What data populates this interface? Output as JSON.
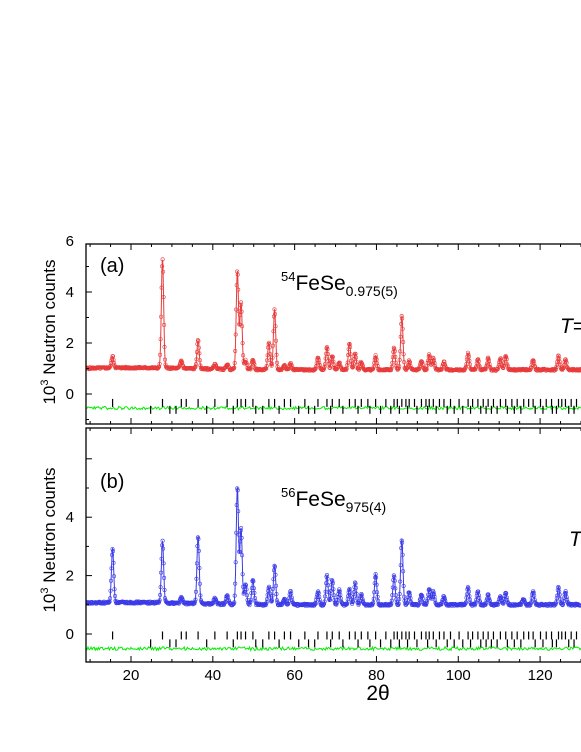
{
  "chart_data": [
    {
      "type": "scatter",
      "panel_label": "(a)",
      "compound": {
        "sup": "54",
        "base": "FeSe",
        "sub": "0.975(5)"
      },
      "side_text": {
        "italic": "T",
        "rest": "="
      },
      "ylabel": {
        "prefix": "10",
        "sup": "3",
        "rest": " Neutron counts"
      },
      "xlim": [
        9,
        130
      ],
      "ylim": [
        -1,
        6
      ],
      "x_ticks": [
        20,
        40,
        60,
        80,
        100,
        120
      ],
      "y_ticks": [
        0,
        2,
        4,
        6
      ],
      "y_tick_labels": [
        "0",
        "2",
        "4",
        "6"
      ],
      "background": 0.95,
      "series": [
        {
          "role": "observed",
          "marker": "open-circle",
          "color": "#e83a3a",
          "peaks": [
            [
              15.5,
              0.45
            ],
            [
              27.7,
              4.25
            ],
            [
              32.3,
              0.3
            ],
            [
              36.4,
              1.1
            ],
            [
              40.5,
              0.2
            ],
            [
              43.5,
              0.2
            ],
            [
              46.0,
              3.85
            ],
            [
              46.9,
              2.6
            ],
            [
              48.0,
              0.35
            ],
            [
              49.8,
              0.4
            ],
            [
              53.7,
              1.05
            ],
            [
              55.1,
              2.35
            ],
            [
              57.5,
              0.2
            ],
            [
              59.0,
              0.25
            ],
            [
              65.7,
              0.5
            ],
            [
              67.9,
              0.9
            ],
            [
              69.2,
              0.55
            ],
            [
              70.9,
              0.3
            ],
            [
              73.4,
              1.05
            ],
            [
              74.8,
              0.65
            ],
            [
              76.3,
              0.3
            ],
            [
              79.8,
              0.55
            ],
            [
              84.3,
              0.85
            ],
            [
              86.2,
              2.1
            ],
            [
              88.0,
              0.35
            ],
            [
              91.0,
              0.35
            ],
            [
              92.9,
              0.6
            ],
            [
              93.9,
              0.45
            ],
            [
              96.5,
              0.3
            ],
            [
              102.4,
              0.65
            ],
            [
              104.8,
              0.4
            ],
            [
              107.3,
              0.45
            ],
            [
              110.3,
              0.45
            ],
            [
              111.6,
              0.55
            ],
            [
              118.3,
              0.4
            ],
            [
              124.5,
              0.55
            ],
            [
              126.2,
              0.4
            ]
          ]
        },
        {
          "role": "calculated",
          "color": "#e83a3a"
        },
        {
          "role": "difference",
          "color": "#00ee00",
          "offset": -0.55
        }
      ],
      "reflection_rows": [
        {
          "y": -0.35,
          "positions": [
            15.5,
            27.7,
            32.3,
            33.5,
            36.4,
            40.5,
            43.5,
            46.0,
            46.9,
            48.0,
            49.8,
            53.7,
            55.1,
            57.5,
            59.0,
            62.5,
            65.7,
            67.9,
            69.2,
            70.9,
            73.4,
            74.8,
            76.3,
            77.9,
            79.8,
            82.3,
            84.3,
            85.1,
            86.2,
            87.2,
            88.0,
            89.3,
            91.0,
            92.1,
            92.9,
            93.9,
            95.4,
            96.5,
            98.1,
            100.2,
            102.4,
            103.5,
            104.8,
            106.1,
            107.3,
            108.6,
            110.3,
            111.6,
            113.1,
            114.4,
            116.0,
            117.2,
            118.3,
            120.1,
            121.5,
            122.8,
            124.5,
            125.3,
            126.2,
            127.6,
            128.9
          ]
        },
        {
          "y": -0.62,
          "positions": [
            24.8,
            29.5,
            31.0,
            38.5,
            45.0,
            50.5,
            52.2,
            56.2,
            61.0,
            63.4,
            64.9,
            68.8,
            71.8,
            75.5,
            78.4,
            81.0,
            83.5,
            85.6,
            87.6,
            89.9,
            92.5,
            94.6,
            97.3,
            99.0,
            101.1,
            103.0,
            105.5,
            106.8,
            108.1,
            109.5,
            112.0,
            113.7,
            115.3,
            118.8,
            120.7,
            123.0,
            124.0,
            127.0,
            128.3
          ]
        }
      ]
    },
    {
      "type": "scatter",
      "panel_label": "(b)",
      "compound": {
        "sup": "56",
        "base": "FeSe",
        "sub": "975(4)"
      },
      "side_text": {
        "italic": "T",
        "rest": ""
      },
      "ylabel": {
        "prefix": "10",
        "sup": "3",
        "rest": " Neutron counts"
      },
      "xlabel": "2θ",
      "xlim": [
        9,
        130
      ],
      "ylim": [
        -1,
        6
      ],
      "x_ticks": [
        20,
        40,
        60,
        80,
        100,
        120
      ],
      "x_tick_labels": [
        "20",
        "40",
        "60",
        "80",
        "100",
        "120"
      ],
      "y_ticks": [
        0,
        2,
        4,
        6
      ],
      "y_tick_labels": [
        "0",
        "2",
        "4",
        ""
      ],
      "background": 1.0,
      "series": [
        {
          "role": "observed",
          "marker": "open-circle",
          "color": "#3a3ae8",
          "peaks": [
            [
              15.5,
              1.85
            ],
            [
              27.7,
              2.1
            ],
            [
              32.3,
              0.2
            ],
            [
              36.4,
              2.3
            ],
            [
              40.5,
              0.2
            ],
            [
              43.5,
              0.3
            ],
            [
              46.0,
              4.0
            ],
            [
              46.9,
              2.6
            ],
            [
              48.0,
              0.7
            ],
            [
              49.8,
              0.85
            ],
            [
              53.7,
              0.6
            ],
            [
              55.1,
              1.35
            ],
            [
              57.5,
              0.2
            ],
            [
              59.0,
              0.45
            ],
            [
              65.7,
              0.45
            ],
            [
              67.9,
              1.0
            ],
            [
              69.2,
              0.85
            ],
            [
              70.9,
              0.5
            ],
            [
              73.4,
              0.55
            ],
            [
              74.8,
              0.75
            ],
            [
              76.3,
              0.35
            ],
            [
              79.8,
              1.05
            ],
            [
              84.3,
              1.0
            ],
            [
              86.2,
              2.25
            ],
            [
              88.0,
              0.45
            ],
            [
              91.0,
              0.35
            ],
            [
              92.9,
              0.55
            ],
            [
              93.9,
              0.45
            ],
            [
              96.5,
              0.3
            ],
            [
              102.4,
              0.6
            ],
            [
              104.8,
              0.45
            ],
            [
              107.3,
              0.35
            ],
            [
              110.3,
              0.3
            ],
            [
              111.6,
              0.4
            ],
            [
              115.9,
              0.2
            ],
            [
              118.3,
              0.45
            ],
            [
              124.5,
              0.6
            ],
            [
              126.2,
              0.45
            ]
          ]
        },
        {
          "role": "calculated",
          "color": "#3a3ae8"
        },
        {
          "role": "difference",
          "color": "#00ee00",
          "offset": -0.5
        }
      ],
      "reflection_rows": [
        {
          "y": -0.05,
          "positions": [
            15.5,
            27.7,
            32.3,
            33.5,
            36.4,
            40.5,
            43.5,
            46.0,
            46.9,
            48.0,
            49.8,
            53.7,
            55.1,
            57.5,
            59.0,
            62.5,
            65.7,
            67.9,
            69.2,
            70.9,
            73.4,
            74.8,
            76.3,
            77.9,
            79.8,
            82.3,
            84.3,
            85.1,
            86.2,
            87.2,
            88.0,
            89.3,
            91.0,
            92.1,
            92.9,
            93.9,
            95.4,
            96.5,
            98.1,
            100.2,
            102.4,
            103.5,
            104.8,
            106.1,
            107.3,
            108.6,
            110.3,
            111.6,
            113.1,
            114.4,
            116.0,
            117.2,
            118.3,
            120.1,
            121.5,
            122.8,
            124.5,
            125.3,
            126.2,
            127.6,
            128.9
          ]
        },
        {
          "y": -0.32,
          "positions": [
            24.8,
            29.5,
            31.0,
            38.5,
            45.0,
            50.5,
            52.2,
            56.2,
            61.0,
            63.4,
            64.9,
            68.8,
            71.8,
            75.5,
            78.4,
            81.0,
            83.5,
            85.6,
            87.6,
            89.9,
            92.5,
            94.6,
            97.3,
            99.0,
            101.1,
            103.0,
            105.5,
            106.8,
            108.1,
            109.5,
            112.0,
            113.7,
            115.3,
            118.8,
            120.7,
            123.0,
            124.0,
            127.0,
            128.3
          ]
        }
      ]
    }
  ]
}
